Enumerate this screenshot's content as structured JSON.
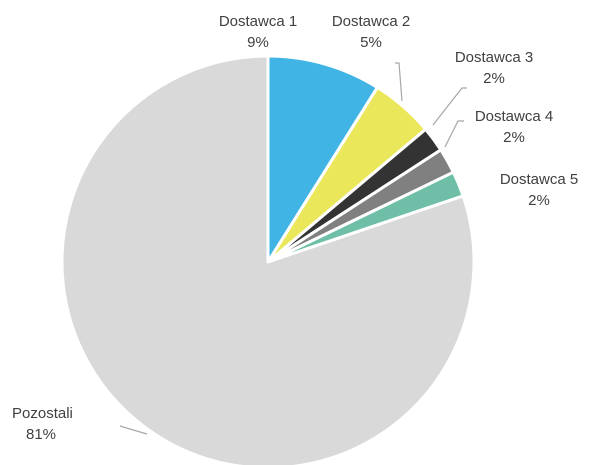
{
  "chart_data": {
    "type": "pie",
    "title": "",
    "slices": [
      {
        "label": "Dostawca 1",
        "value": 9,
        "value_label": "9%",
        "color": "#41b4e6"
      },
      {
        "label": "Dostawca 2",
        "value": 5,
        "value_label": "5%",
        "color": "#ebe75a"
      },
      {
        "label": "Dostawca 3",
        "value": 2,
        "value_label": "2%",
        "color": "#333333"
      },
      {
        "label": "Dostawca 4",
        "value": 2,
        "value_label": "2%",
        "color": "#808080"
      },
      {
        "label": "Dostawca 5",
        "value": 2,
        "value_label": "2%",
        "color": "#6fbfa8"
      },
      {
        "label": "Pozostali",
        "value": 81,
        "value_label": "81%",
        "color": "#d9d9d9"
      }
    ],
    "start_angle": "12 o'clock",
    "direction": "clockwise",
    "legend": "none"
  }
}
